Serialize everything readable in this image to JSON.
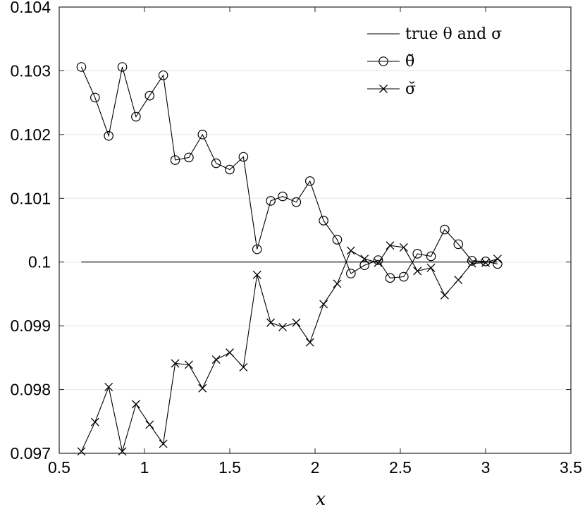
{
  "chart_data": {
    "type": "line",
    "xlabel": "x",
    "ylabel": "",
    "xlim": [
      0.5,
      3.5
    ],
    "ylim": [
      0.097,
      0.104
    ],
    "grid": "horizontal",
    "legend_position": "top-right",
    "x_ticks": [
      {
        "value": 0.5,
        "label": "0.5"
      },
      {
        "value": 1.0,
        "label": "1"
      },
      {
        "value": 1.5,
        "label": "1.5"
      },
      {
        "value": 2.0,
        "label": "2"
      },
      {
        "value": 2.5,
        "label": "2.5"
      },
      {
        "value": 3.0,
        "label": "3"
      },
      {
        "value": 3.5,
        "label": "3.5"
      }
    ],
    "y_ticks": [
      {
        "value": 0.097,
        "label": "0.097"
      },
      {
        "value": 0.098,
        "label": "0.098"
      },
      {
        "value": 0.099,
        "label": "0.099"
      },
      {
        "value": 0.1,
        "label": "0.1"
      },
      {
        "value": 0.101,
        "label": "0.101"
      },
      {
        "value": 0.102,
        "label": "0.102"
      },
      {
        "value": 0.103,
        "label": "0.103"
      },
      {
        "value": 0.104,
        "label": "0.104"
      }
    ],
    "x": [
      0.63,
      0.71,
      0.79,
      0.87,
      0.95,
      1.03,
      1.11,
      1.18,
      1.26,
      1.34,
      1.42,
      1.5,
      1.58,
      1.66,
      1.74,
      1.81,
      1.89,
      1.97,
      2.05,
      2.13,
      2.21,
      2.29,
      2.37,
      2.44,
      2.52,
      2.6,
      2.68,
      2.76,
      2.84,
      2.92,
      3.0,
      3.07
    ],
    "series": [
      {
        "name": "true θ and σ",
        "style": "line",
        "x": [
          0.63,
          3.07
        ],
        "values": [
          0.1,
          0.1
        ]
      },
      {
        "name": "θ̆",
        "style": "line-circle",
        "values": [
          0.10306,
          0.10258,
          0.10198,
          0.10306,
          0.10228,
          0.10261,
          0.10293,
          0.1016,
          0.10164,
          0.102,
          0.10155,
          0.10145,
          0.10165,
          0.1002,
          0.10096,
          0.10103,
          0.10094,
          0.10127,
          0.10065,
          0.10035,
          0.09982,
          0.09995,
          0.10003,
          0.09975,
          0.09977,
          0.10013,
          0.10009,
          0.10051,
          0.10028,
          0.10002,
          0.10001,
          0.09997
        ]
      },
      {
        "name": "σ̆",
        "style": "line-x",
        "values": [
          0.09703,
          0.09749,
          0.09804,
          0.09703,
          0.09777,
          0.09745,
          0.09715,
          0.09841,
          0.09839,
          0.09802,
          0.09847,
          0.09858,
          0.09835,
          0.0998,
          0.09905,
          0.09898,
          0.09905,
          0.09874,
          0.09934,
          0.09966,
          0.10018,
          0.10005,
          0.09999,
          0.10026,
          0.10023,
          0.09986,
          0.09991,
          0.09948,
          0.09972,
          0.09998,
          0.09999,
          0.10005
        ]
      }
    ]
  }
}
